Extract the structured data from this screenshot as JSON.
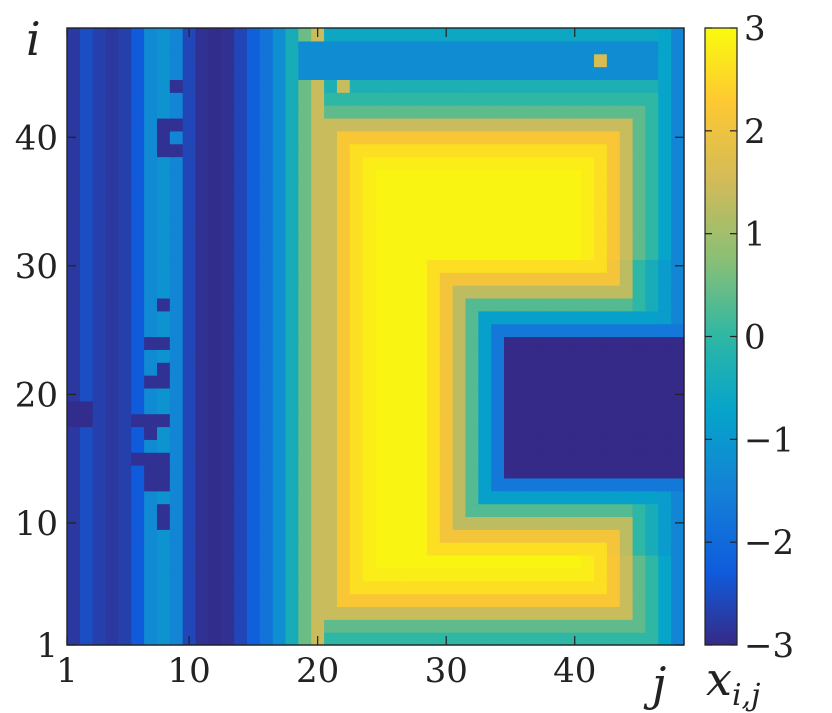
{
  "chart_data": {
    "type": "heatmap",
    "title": "",
    "xlabel": "j",
    "ylabel": "i",
    "colorbar_label_main": "x",
    "colorbar_label_sub": "i,j",
    "x_range": [
      1,
      48
    ],
    "y_range": [
      1,
      48
    ],
    "x_ticks": [
      1,
      10,
      20,
      30,
      40
    ],
    "y_ticks": [
      1,
      10,
      20,
      30,
      40
    ],
    "x_tick_labels": [
      "1",
      "10",
      "20",
      "30",
      "40"
    ],
    "y_tick_labels": [
      "1",
      "10",
      "20",
      "30",
      "40"
    ],
    "colorbar_range": [
      -3,
      3
    ],
    "colorbar_ticks": [
      -3,
      -2,
      -1,
      0,
      1,
      2,
      3
    ],
    "colorbar_tick_labels": [
      "−3",
      "−2",
      "−1",
      "0",
      "1",
      "2",
      "3"
    ],
    "colormap": "parula",
    "column_profile": [
      -2.8,
      -2.5,
      -2.7,
      -2.8,
      -2.7,
      -2.3,
      -1.3,
      -1.1,
      -1.4,
      -2.6,
      -2.9,
      -2.95,
      -2.9,
      -2.6,
      -2.2,
      -1.8,
      -1.2,
      -0.4,
      0.5,
      1.4,
      2.2,
      2.6,
      2.8,
      2.9,
      2.9,
      2.9,
      2.9,
      2.9,
      2.9,
      2.9,
      2.9,
      2.9,
      2.9,
      2.9,
      2.9,
      2.9,
      2.9,
      2.9,
      2.9,
      2.9,
      2.9,
      2.9,
      2.8,
      2.4,
      1.2,
      0.3,
      -0.7,
      -1.4
    ],
    "background_field": [
      {
        "type": "rect",
        "i": [
          45,
          47
        ],
        "j": [
          19,
          46
        ],
        "value": -1.25
      },
      {
        "type": "cell",
        "i": 46,
        "j": 42,
        "value": 1.6
      },
      {
        "type": "cell",
        "i": 44,
        "j": 22,
        "value": 1.4
      }
    ],
    "c_structure": {
      "outer": {
        "i": [
          3,
          41
        ],
        "j": [
          21,
          44
        ]
      },
      "notch_opening_j": 44,
      "notch_i": [
        14,
        24
      ],
      "notch_inner_j": 35,
      "notch_core_value": -3.0,
      "background_value": 2.9
    },
    "left_defects": [
      {
        "i": 44,
        "j": 9,
        "value": -2.9
      },
      {
        "i": 41,
        "j": 8,
        "value": -2.9
      },
      {
        "i": 41,
        "j": 9,
        "value": -2.9
      },
      {
        "i": 40,
        "j": 8,
        "value": -2.9
      },
      {
        "i": 39,
        "j": 8,
        "value": -2.9
      },
      {
        "i": 39,
        "j": 9,
        "value": -2.9
      },
      {
        "i": 27,
        "j": 8,
        "value": -2.9
      },
      {
        "i": 24,
        "j": 7,
        "value": -2.9
      },
      {
        "i": 24,
        "j": 8,
        "value": -2.9
      },
      {
        "i": 22,
        "j": 8,
        "value": -2.9
      },
      {
        "i": 21,
        "j": 7,
        "value": -2.9
      },
      {
        "i": 21,
        "j": 8,
        "value": -2.9
      },
      {
        "i": 18,
        "j": 6,
        "value": -2.9
      },
      {
        "i": 18,
        "j": 7,
        "value": -2.9
      },
      {
        "i": 18,
        "j": 8,
        "value": -2.9
      },
      {
        "i": 17,
        "j": 7,
        "value": -2.9
      },
      {
        "i": 15,
        "j": 6,
        "value": -2.9
      },
      {
        "i": 15,
        "j": 7,
        "value": -2.9
      },
      {
        "i": 15,
        "j": 8,
        "value": -2.9
      },
      {
        "i": 14,
        "j": 7,
        "value": -2.9
      },
      {
        "i": 14,
        "j": 8,
        "value": -2.9
      },
      {
        "i": 13,
        "j": 7,
        "value": -2.9
      },
      {
        "i": 13,
        "j": 8,
        "value": -2.9
      },
      {
        "i": 11,
        "j": 8,
        "value": -2.9
      },
      {
        "i": 10,
        "j": 8,
        "value": -2.9
      }
    ],
    "left_stripe_defects": [
      {
        "i": 18,
        "j": 1,
        "value": -2.95
      },
      {
        "i": 18,
        "j": 2,
        "value": -2.95
      },
      {
        "i": 19,
        "j": 1,
        "value": -2.95
      },
      {
        "i": 19,
        "j": 2,
        "value": -2.95
      }
    ],
    "grid": false,
    "legend": "none"
  }
}
